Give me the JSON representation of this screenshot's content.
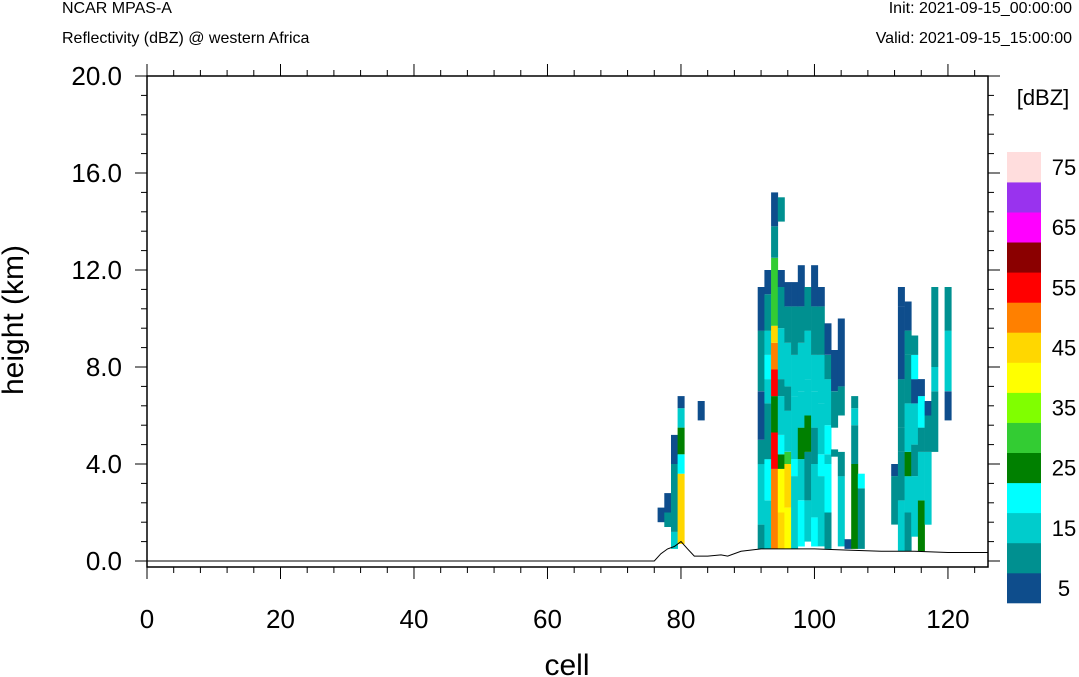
{
  "header": {
    "model": "NCAR MPAS-A",
    "subtitle": "Reflectivity (dBZ) @ western Africa",
    "init": "Init: 2021-09-15_00:00:00",
    "valid": "Valid: 2021-09-15_15:00:00"
  },
  "chart_data": {
    "type": "heatmap",
    "xlabel": "cell",
    "ylabel": "height (km)",
    "xlim": [
      0,
      126
    ],
    "ylim": [
      0,
      20
    ],
    "xticks": [
      "0",
      "20",
      "40",
      "60",
      "80",
      "100",
      "120"
    ],
    "yticks": [
      "0.0",
      "4.0",
      "8.0",
      "12.0",
      "16.0",
      "20.0"
    ],
    "colorbar": {
      "units": "[dBZ]",
      "levels": [
        5,
        10,
        15,
        20,
        25,
        30,
        35,
        40,
        45,
        50,
        55,
        60,
        65,
        70,
        75
      ],
      "labels": [
        "5",
        "15",
        "25",
        "35",
        "45",
        "55",
        "65",
        "75"
      ],
      "colors": [
        "#0e4d8c",
        "#009090",
        "#00cccc",
        "#00ffff",
        "#008000",
        "#33cc33",
        "#80ff00",
        "#ffff00",
        "#ffd700",
        "#ff8000",
        "#ff0000",
        "#8b0000",
        "#ff00ff",
        "#9933ee",
        "#ffdddd"
      ]
    },
    "terrain": [
      [
        0,
        0
      ],
      [
        76,
        0
      ],
      [
        77,
        0.3
      ],
      [
        78,
        0.5
      ],
      [
        79,
        0.6
      ],
      [
        80,
        0.8
      ],
      [
        81,
        0.5
      ],
      [
        82,
        0.2
      ],
      [
        84,
        0.2
      ],
      [
        86,
        0.25
      ],
      [
        87,
        0.2
      ],
      [
        89,
        0.4
      ],
      [
        92,
        0.5
      ],
      [
        96,
        0.5
      ],
      [
        100,
        0.5
      ],
      [
        105,
        0.45
      ],
      [
        110,
        0.4
      ],
      [
        115,
        0.4
      ],
      [
        120,
        0.35
      ],
      [
        126,
        0.35
      ]
    ],
    "columns": [
      {
        "x": 77,
        "bands": [
          [
            1.6,
            2.2,
            5
          ]
        ]
      },
      {
        "x": 78,
        "bands": [
          [
            1.4,
            2.0,
            10
          ],
          [
            2.0,
            2.8,
            5
          ]
        ]
      },
      {
        "x": 79,
        "bands": [
          [
            0.5,
            1.2,
            15
          ],
          [
            1.2,
            4.0,
            10
          ],
          [
            4.0,
            5.2,
            5
          ]
        ]
      },
      {
        "x": 80,
        "bands": [
          [
            0.7,
            3.6,
            45
          ],
          [
            3.6,
            4.4,
            20
          ],
          [
            4.4,
            5.5,
            25
          ],
          [
            5.5,
            6.3,
            15
          ],
          [
            6.3,
            6.8,
            5
          ]
        ]
      },
      {
        "x": 83,
        "bands": [
          [
            5.8,
            6.6,
            5
          ]
        ]
      },
      {
        "x": 92,
        "bands": [
          [
            0.5,
            1.5,
            10
          ],
          [
            1.5,
            4.0,
            15
          ],
          [
            4.0,
            5.0,
            10
          ],
          [
            5.0,
            7.0,
            5
          ],
          [
            7.0,
            9.5,
            10
          ],
          [
            9.5,
            11.3,
            5
          ]
        ]
      },
      {
        "x": 93,
        "bands": [
          [
            0.5,
            2.5,
            15
          ],
          [
            2.5,
            4.2,
            20
          ],
          [
            4.2,
            6.5,
            10
          ],
          [
            6.5,
            7.5,
            15
          ],
          [
            7.5,
            8.5,
            20
          ],
          [
            8.5,
            9.5,
            15
          ],
          [
            9.5,
            11.0,
            10
          ],
          [
            11.0,
            12.0,
            5
          ]
        ]
      },
      {
        "x": 94,
        "bands": [
          [
            0.5,
            3.8,
            50
          ],
          [
            3.8,
            5.3,
            55
          ],
          [
            5.3,
            6.8,
            25
          ],
          [
            6.8,
            7.9,
            55
          ],
          [
            7.9,
            9.0,
            50
          ],
          [
            9.0,
            9.7,
            45
          ],
          [
            9.7,
            12.5,
            30
          ],
          [
            12.5,
            13.8,
            10
          ],
          [
            13.8,
            15.2,
            5
          ]
        ]
      },
      {
        "x": 95,
        "bands": [
          [
            0.5,
            2.0,
            45
          ],
          [
            2.0,
            3.8,
            40
          ],
          [
            3.8,
            4.4,
            25
          ],
          [
            4.4,
            5.2,
            20
          ],
          [
            5.2,
            6.8,
            15
          ],
          [
            6.8,
            7.5,
            10
          ],
          [
            7.5,
            9.6,
            15
          ],
          [
            9.6,
            11.3,
            10
          ],
          [
            11.3,
            12.0,
            5
          ],
          [
            14.0,
            15.0,
            10
          ]
        ]
      },
      {
        "x": 96,
        "bands": [
          [
            0.5,
            2.2,
            40
          ],
          [
            2.2,
            4.0,
            45
          ],
          [
            4.0,
            4.5,
            30
          ],
          [
            4.5,
            6.2,
            15
          ],
          [
            6.2,
            7.2,
            10
          ],
          [
            7.2,
            9.0,
            15
          ],
          [
            9.0,
            10.5,
            10
          ],
          [
            10.5,
            11.5,
            5
          ]
        ]
      },
      {
        "x": 97,
        "bands": [
          [
            0.5,
            3.5,
            15
          ],
          [
            3.5,
            4.2,
            20
          ],
          [
            4.2,
            6.8,
            15
          ],
          [
            6.8,
            8.5,
            15
          ],
          [
            8.5,
            10.5,
            10
          ],
          [
            10.5,
            11.5,
            5
          ]
        ]
      },
      {
        "x": 98,
        "bands": [
          [
            0.6,
            2.5,
            20
          ],
          [
            2.5,
            4.2,
            15
          ],
          [
            4.2,
            5.5,
            25
          ],
          [
            5.5,
            7.0,
            15
          ],
          [
            7.0,
            9.0,
            15
          ],
          [
            9.0,
            10.5,
            10
          ],
          [
            10.5,
            12.2,
            5
          ]
        ]
      },
      {
        "x": 99,
        "bands": [
          [
            0.8,
            2.5,
            15
          ],
          [
            2.5,
            4.5,
            10
          ],
          [
            4.5,
            6.0,
            25
          ],
          [
            6.0,
            7.5,
            15
          ],
          [
            7.5,
            9.5,
            15
          ],
          [
            9.5,
            11.3,
            10
          ]
        ]
      },
      {
        "x": 100,
        "bands": [
          [
            0.6,
            1.8,
            20
          ],
          [
            1.8,
            4.0,
            15
          ],
          [
            4.0,
            5.5,
            10
          ],
          [
            5.5,
            7.0,
            15
          ],
          [
            7.0,
            8.5,
            15
          ],
          [
            8.5,
            10.5,
            10
          ],
          [
            10.5,
            12.2,
            5
          ]
        ]
      },
      {
        "x": 101,
        "bands": [
          [
            0.6,
            3.5,
            15
          ],
          [
            3.5,
            4.4,
            20
          ],
          [
            4.4,
            6.5,
            15
          ],
          [
            6.5,
            8.5,
            15
          ],
          [
            8.5,
            10.5,
            10
          ],
          [
            10.5,
            11.3,
            5
          ]
        ]
      },
      {
        "x": 102,
        "bands": [
          [
            0.5,
            2.0,
            10
          ],
          [
            2.0,
            4.0,
            20
          ],
          [
            4.0,
            4.4,
            15
          ],
          [
            4.4,
            5.6,
            20
          ],
          [
            5.6,
            7.5,
            15
          ],
          [
            7.5,
            8.5,
            10
          ],
          [
            8.5,
            9.8,
            5
          ]
        ]
      },
      {
        "x": 103,
        "bands": [
          [
            4.3,
            4.6,
            10
          ],
          [
            5.5,
            7.0,
            10
          ],
          [
            7.0,
            8.7,
            5
          ]
        ]
      },
      {
        "x": 104,
        "bands": [
          [
            0.6,
            3.5,
            15
          ],
          [
            3.5,
            4.5,
            10
          ],
          [
            6.0,
            7.2,
            10
          ],
          [
            7.2,
            10.0,
            5
          ]
        ]
      },
      {
        "x": 105,
        "bands": [
          [
            0.5,
            0.9,
            5
          ]
        ]
      },
      {
        "x": 106,
        "bands": [
          [
            0.5,
            4.0,
            25
          ],
          [
            4.0,
            5.6,
            10
          ],
          [
            5.6,
            6.3,
            15
          ],
          [
            6.3,
            6.8,
            10
          ]
        ]
      },
      {
        "x": 107,
        "bands": [
          [
            0.5,
            3.0,
            10
          ],
          [
            3.0,
            3.6,
            20
          ]
        ]
      },
      {
        "x": 112,
        "bands": [
          [
            1.5,
            3.5,
            10
          ],
          [
            3.5,
            4.0,
            5
          ]
        ]
      },
      {
        "x": 113,
        "bands": [
          [
            0.4,
            2.5,
            15
          ],
          [
            2.5,
            4.5,
            10
          ],
          [
            4.5,
            5.5,
            10
          ],
          [
            5.5,
            7.5,
            10
          ],
          [
            7.5,
            10.5,
            5
          ],
          [
            10.5,
            11.3,
            5
          ]
        ]
      },
      {
        "x": 114,
        "bands": [
          [
            0.4,
            2.0,
            10
          ],
          [
            2.0,
            3.5,
            15
          ],
          [
            3.5,
            4.5,
            25
          ],
          [
            4.5,
            6.5,
            15
          ],
          [
            6.5,
            8.5,
            10
          ],
          [
            8.5,
            9.5,
            10
          ],
          [
            9.5,
            10.7,
            5
          ]
        ]
      },
      {
        "x": 115,
        "bands": [
          [
            1.0,
            3.5,
            15
          ],
          [
            3.5,
            4.8,
            10
          ],
          [
            4.8,
            6.5,
            15
          ],
          [
            6.5,
            7.5,
            5
          ],
          [
            7.5,
            8.5,
            20
          ],
          [
            8.5,
            9.3,
            10
          ]
        ]
      },
      {
        "x": 116,
        "bands": [
          [
            0.4,
            2.5,
            25
          ],
          [
            2.5,
            4.5,
            15
          ],
          [
            4.5,
            5.5,
            10
          ],
          [
            5.5,
            6.8,
            20
          ],
          [
            6.8,
            7.5,
            5
          ]
        ]
      },
      {
        "x": 117,
        "bands": [
          [
            1.5,
            4.5,
            15
          ],
          [
            4.5,
            6.0,
            10
          ],
          [
            6.0,
            6.6,
            5
          ]
        ]
      },
      {
        "x": 118,
        "bands": [
          [
            4.5,
            7.0,
            10
          ],
          [
            7.0,
            8.0,
            15
          ],
          [
            8.0,
            11.3,
            10
          ]
        ]
      },
      {
        "x": 120,
        "bands": [
          [
            5.8,
            7.0,
            5
          ],
          [
            7.0,
            9.5,
            15
          ],
          [
            9.5,
            11.3,
            10
          ]
        ]
      }
    ]
  }
}
